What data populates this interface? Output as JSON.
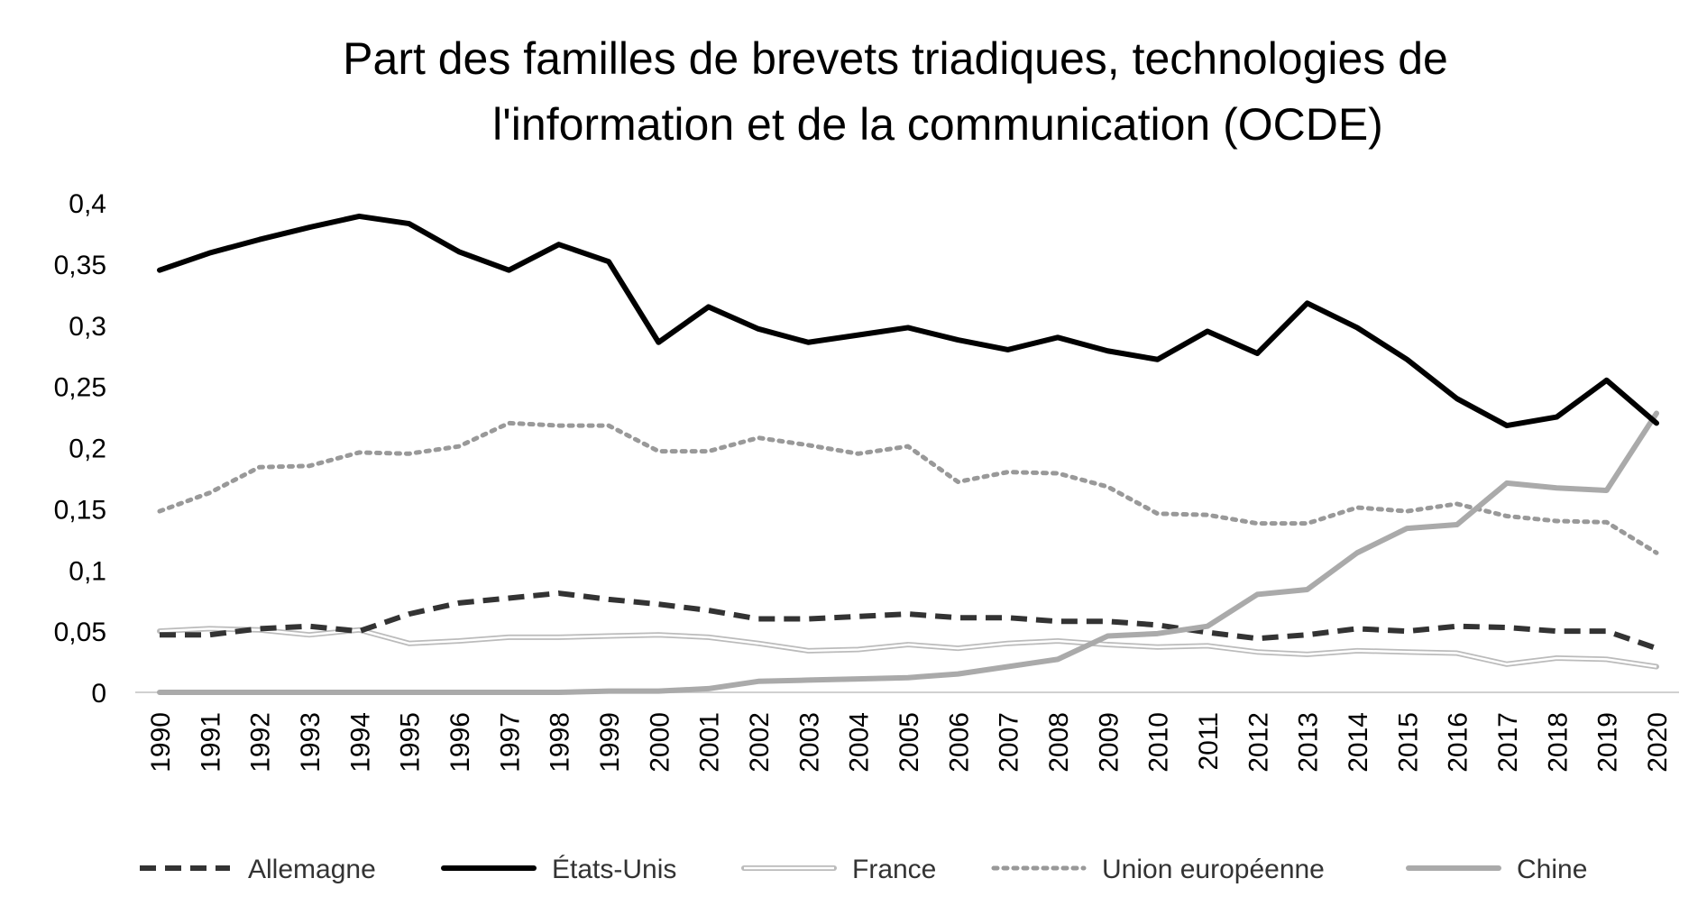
{
  "chart_data": {
    "type": "line",
    "title_lines": [
      "Part des familles de brevets triadiques, technologies de",
      "l'information et de la communication (OCDE)"
    ],
    "xlabel": "",
    "ylabel": "",
    "ylim": [
      0,
      0.4
    ],
    "yticks": [
      "0",
      "0,05",
      "0,1",
      "0,15",
      "0,2",
      "0,25",
      "0,3",
      "0,35",
      "0,4"
    ],
    "grid": false,
    "legend_position": "bottom",
    "x": [
      1990,
      1991,
      1992,
      1993,
      1994,
      1995,
      1996,
      1997,
      1998,
      1999,
      2000,
      2001,
      2002,
      2003,
      2004,
      2005,
      2006,
      2007,
      2008,
      2009,
      2010,
      2011,
      2012,
      2013,
      2014,
      2015,
      2016,
      2017,
      2018,
      2019,
      2020
    ],
    "series": [
      {
        "name": "Allemagne",
        "style": "dashed",
        "color": "#333333",
        "values": [
          0.047,
          0.047,
          0.052,
          0.054,
          0.05,
          0.064,
          0.073,
          0.077,
          0.081,
          0.076,
          0.072,
          0.067,
          0.06,
          0.06,
          0.062,
          0.064,
          0.061,
          0.061,
          0.058,
          0.058,
          0.055,
          0.049,
          0.044,
          0.047,
          0.052,
          0.05,
          0.054,
          0.053,
          0.05,
          0.05,
          0.036
        ]
      },
      {
        "name": "États-Unis",
        "style": "solid",
        "color": "#000000",
        "values": [
          0.345,
          0.359,
          0.37,
          0.38,
          0.389,
          0.383,
          0.36,
          0.345,
          0.366,
          0.352,
          0.286,
          0.315,
          0.297,
          0.286,
          0.292,
          0.298,
          0.288,
          0.28,
          0.29,
          0.279,
          0.272,
          0.295,
          0.277,
          0.318,
          0.298,
          0.272,
          0.24,
          0.218,
          0.225,
          0.255,
          0.22
        ]
      },
      {
        "name": "France",
        "style": "double",
        "color": "#bbbbbb",
        "values": [
          0.05,
          0.052,
          0.051,
          0.047,
          0.051,
          0.04,
          0.042,
          0.045,
          0.045,
          0.046,
          0.047,
          0.045,
          0.04,
          0.034,
          0.035,
          0.039,
          0.036,
          0.04,
          0.042,
          0.039,
          0.037,
          0.038,
          0.033,
          0.031,
          0.034,
          0.033,
          0.032,
          0.023,
          0.028,
          0.027,
          0.021
        ]
      },
      {
        "name": "Union européenne",
        "style": "dotted",
        "color": "#999999",
        "values": [
          0.148,
          0.163,
          0.184,
          0.185,
          0.196,
          0.195,
          0.201,
          0.22,
          0.218,
          0.218,
          0.197,
          0.197,
          0.208,
          0.202,
          0.195,
          0.201,
          0.172,
          0.18,
          0.179,
          0.168,
          0.146,
          0.145,
          0.138,
          0.138,
          0.151,
          0.148,
          0.154,
          0.144,
          0.14,
          0.139,
          0.114
        ]
      },
      {
        "name": "Chine",
        "style": "solid",
        "color": "#aaaaaa",
        "values": [
          0.0,
          0.0,
          0.0,
          0.0,
          0.0,
          0.0,
          0.0,
          0.0,
          0.0,
          0.001,
          0.001,
          0.003,
          0.009,
          0.01,
          0.011,
          0.012,
          0.015,
          0.021,
          0.027,
          0.046,
          0.048,
          0.054,
          0.08,
          0.084,
          0.114,
          0.134,
          0.137,
          0.171,
          0.167,
          0.165,
          0.228
        ]
      }
    ]
  }
}
